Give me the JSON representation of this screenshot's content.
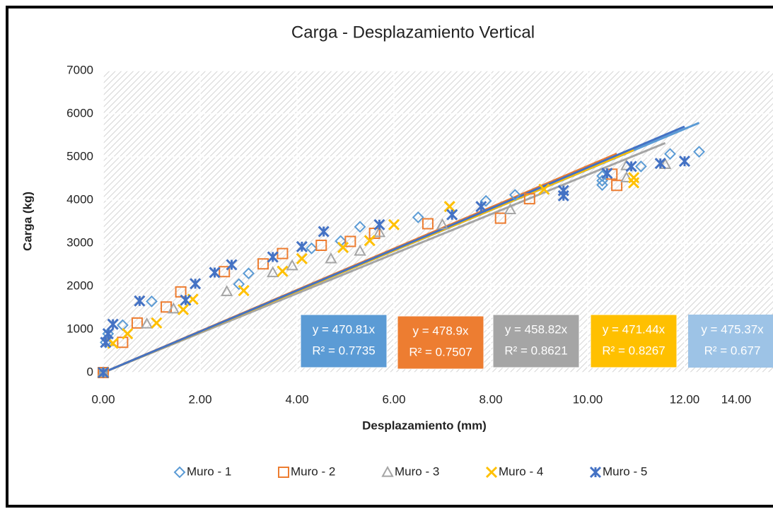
{
  "chart_data": {
    "type": "scatter",
    "title": "Carga - Desplazamiento Vertical",
    "x_label": "Desplazamiento (mm)",
    "y_label": "Carga (kg)",
    "xlim": [
      0,
      14
    ],
    "ylim": [
      0,
      7000
    ],
    "xticks": [
      {
        "value": 0,
        "label": "0.00"
      },
      {
        "value": 2,
        "label": "2.00"
      },
      {
        "value": 4,
        "label": "4.00"
      },
      {
        "value": 6,
        "label": "6.00"
      },
      {
        "value": 8,
        "label": "8.00"
      },
      {
        "value": 10,
        "label": "10.00"
      },
      {
        "value": 12,
        "label": "12.00"
      },
      {
        "value": 14,
        "label": "14.00"
      }
    ],
    "yticks": [
      0,
      1000,
      2000,
      3000,
      4000,
      5000,
      6000,
      7000
    ],
    "grid": true,
    "legend": "bottom",
    "series": [
      {
        "name": "Muro - 1",
        "color": "#5b9bd5",
        "marker": "diamond",
        "label_color": "#5b9bd5",
        "x": [
          0,
          0.05,
          0.1,
          0.4,
          1,
          2.8,
          3,
          4.3,
          4.9,
          5.3,
          6.5,
          7.9,
          8.5,
          10.3,
          10.3,
          10.3,
          11.1,
          11.7,
          12.3
        ],
        "y": [
          0,
          700,
          900,
          1100,
          1650,
          2050,
          2300,
          2880,
          3050,
          3380,
          3600,
          3980,
          4120,
          4350,
          4450,
          4560,
          4780,
          5070,
          5120
        ],
        "trendline": {
          "slope": 470.81,
          "label": "y = 470.81x",
          "r2": 0.7735,
          "r2_label": "R² = 0.7735"
        }
      },
      {
        "name": "Muro - 2",
        "color": "#ed7d31",
        "marker": "square",
        "label_color": "#ed7d31",
        "x": [
          0,
          0.4,
          0.7,
          1.3,
          1.6,
          2.5,
          3.3,
          3.7,
          4.5,
          5.1,
          5.6,
          6.7,
          8.2,
          8.8,
          10.6,
          10.5
        ],
        "y": [
          0,
          700,
          1150,
          1520,
          1870,
          2340,
          2520,
          2760,
          2950,
          3040,
          3230,
          3450,
          3580,
          4030,
          4340,
          4600
        ],
        "trendline": {
          "slope": 478.9,
          "label": "y = 478.9x",
          "r2": 0.7507,
          "r2_label": "R² = 0.7507"
        }
      },
      {
        "name": "Muro - 3",
        "color": "#a5a5a5",
        "marker": "triangle",
        "label_color": "#a5a5a5",
        "x": [
          0,
          0.1,
          0.9,
          1.45,
          2.55,
          3.5,
          3.9,
          4.7,
          5.3,
          5.7,
          7,
          8.4,
          10.8,
          10.8,
          11.6
        ],
        "y": [
          0,
          720,
          1130,
          1480,
          1880,
          2320,
          2480,
          2640,
          2820,
          3250,
          3430,
          3780,
          4520,
          4800,
          4830
        ],
        "trendline": {
          "slope": 458.82,
          "label": "y = 458.82x",
          "r2": 0.8621,
          "r2_label": "R² = 0.8621"
        }
      },
      {
        "name": "Muro - 4",
        "color": "#ffc000",
        "marker": "x",
        "label_color": "#ffc000",
        "x": [
          0,
          0.2,
          0.5,
          1.1,
          1.65,
          1.85,
          2.9,
          3.7,
          4.1,
          4.95,
          5.5,
          6,
          7.15,
          9.1,
          10.95,
          10.95
        ],
        "y": [
          0,
          680,
          900,
          1150,
          1460,
          1700,
          1900,
          2350,
          2640,
          2900,
          3060,
          3430,
          3850,
          4250,
          4400,
          4520
        ],
        "trendline": {
          "slope": 471.44,
          "label": "y = 471.44x",
          "r2": 0.8267,
          "r2_label": "R² = 0.8267"
        }
      },
      {
        "name": "Muro - 5",
        "color": "#4472c4",
        "marker": "star",
        "label_color": "#9dc3e6",
        "x": [
          0,
          0.05,
          0.1,
          0.2,
          0.75,
          1.7,
          1.9,
          2.3,
          2.65,
          3.5,
          4.1,
          4.55,
          5.7,
          7.2,
          7.8,
          9.5,
          9.5,
          10.4,
          10.9,
          11.5,
          12
        ],
        "y": [
          0,
          700,
          900,
          1120,
          1660,
          1680,
          2060,
          2320,
          2500,
          2680,
          2920,
          3270,
          3430,
          3660,
          3850,
          4100,
          4220,
          4620,
          4780,
          4850,
          4900
        ],
        "trendline": {
          "slope": 475.37,
          "label": "y = 475.37x",
          "r2": 0.677,
          "r2_label": "R² = 0.677"
        }
      }
    ]
  }
}
